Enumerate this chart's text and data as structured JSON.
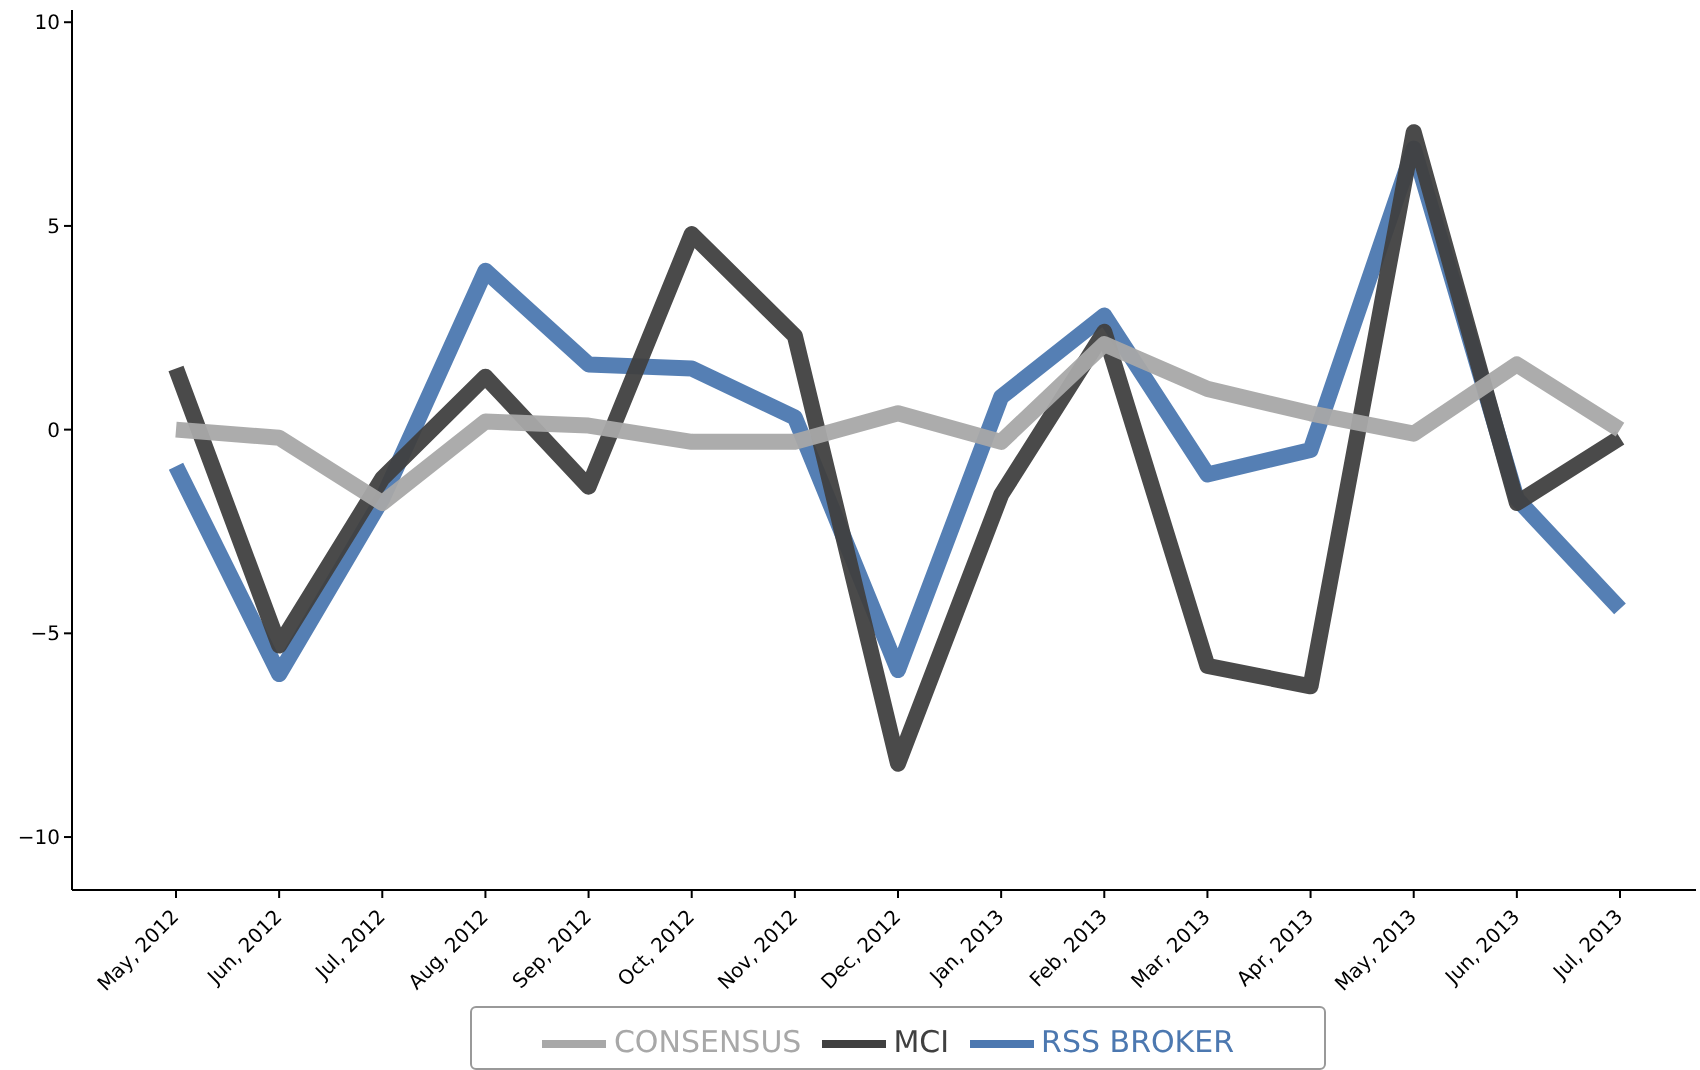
{
  "chart_data": {
    "type": "line",
    "categories": [
      "May, 2012",
      "Jun, 2012",
      "Jul, 2012",
      "Aug, 2012",
      "Sep, 2012",
      "Oct, 2012",
      "Nov, 2012",
      "Dec, 2012",
      "Jan, 2013",
      "Feb, 2013",
      "Mar, 2013",
      "Apr, 2013",
      "May, 2013",
      "Jun, 2013",
      "Jul, 2013"
    ],
    "series": [
      {
        "name": "RSS BROKER",
        "color": "#4c78b0",
        "values": [
          -0.9,
          -6.0,
          -1.7,
          3.9,
          1.6,
          1.5,
          0.3,
          -5.9,
          0.8,
          2.8,
          -1.1,
          -0.5,
          6.9,
          -1.7,
          -4.4
        ]
      },
      {
        "name": "MCI",
        "color": "#404040",
        "values": [
          1.5,
          -5.3,
          -1.2,
          1.3,
          -1.4,
          4.8,
          2.3,
          -8.2,
          -1.6,
          2.4,
          -5.8,
          -6.3,
          7.3,
          -1.8,
          -0.2
        ]
      },
      {
        "name": "CONSENSUS",
        "color": "#a8a8a8",
        "values": [
          0.0,
          -0.2,
          -1.8,
          0.2,
          0.1,
          -0.3,
          -0.3,
          0.4,
          -0.3,
          2.1,
          1.0,
          0.4,
          -0.1,
          1.6,
          0.0
        ]
      }
    ],
    "ylim": [
      -11.3,
      10.3
    ],
    "yticks": [
      {
        "value": -10,
        "label": "−10"
      },
      {
        "value": -5,
        "label": "−5"
      },
      0,
      5,
      10
    ],
    "grid": false,
    "legend": "bottom",
    "marker": "none",
    "line_style": "solid"
  }
}
